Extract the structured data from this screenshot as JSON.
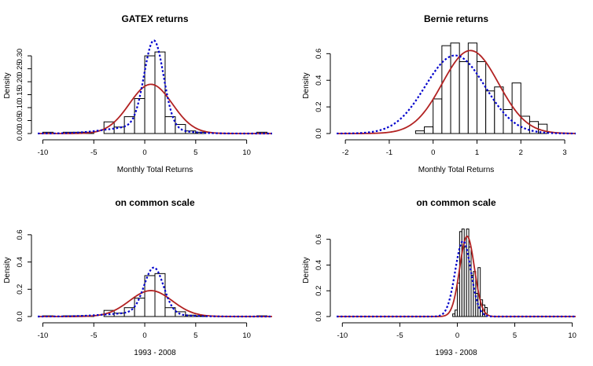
{
  "colors": {
    "normal_curve": "#b22222",
    "density_curve": "#0000cc",
    "bar_fill": "#ffffff",
    "bar_stroke": "#000000"
  },
  "chart_data": [
    {
      "type": "histogram",
      "title": "GATEX returns",
      "xlabel": "Monthly Total Returns",
      "ylabel": "Density",
      "xlim": [
        -10.5,
        12.5
      ],
      "ylim": [
        0,
        0.37
      ],
      "xticks": [
        -10,
        -5,
        0,
        5,
        10
      ],
      "xticklabels": [
        "-10",
        "-5",
        "0",
        "5",
        "10"
      ],
      "yticks": [
        0,
        0.05,
        0.1,
        0.15,
        0.2,
        0.25,
        0.3
      ],
      "yticklabels": [
        "0.00",
        "0.05",
        "0.10",
        "0.15",
        "0.20",
        "0.25",
        "0.30"
      ],
      "bins": [
        {
          "x0": -10,
          "x1": -9,
          "y": 0.005
        },
        {
          "x0": -8,
          "x1": -7,
          "y": 0.005
        },
        {
          "x0": -7,
          "x1": -6,
          "y": 0.005
        },
        {
          "x0": -6,
          "x1": -5,
          "y": 0.005
        },
        {
          "x0": -4,
          "x1": -3,
          "y": 0.045
        },
        {
          "x0": -3,
          "x1": -2,
          "y": 0.025
        },
        {
          "x0": -2,
          "x1": -1,
          "y": 0.065
        },
        {
          "x0": -1,
          "x1": 0,
          "y": 0.135
        },
        {
          "x0": 0,
          "x1": 1,
          "y": 0.3
        },
        {
          "x0": 1,
          "x1": 2,
          "y": 0.315
        },
        {
          "x0": 2,
          "x1": 3,
          "y": 0.065
        },
        {
          "x0": 3,
          "x1": 4,
          "y": 0.035
        },
        {
          "x0": 4,
          "x1": 5,
          "y": 0.01
        },
        {
          "x0": 5,
          "x1": 6,
          "y": 0.005
        },
        {
          "x0": 11,
          "x1": 12,
          "y": 0.005
        }
      ],
      "normal": {
        "mean": 0.6,
        "sd": 2.1
      },
      "kde": {
        "mixture": [
          {
            "w": 0.8,
            "m": 0.9,
            "s": 0.95
          },
          {
            "w": 0.2,
            "m": -0.6,
            "s": 3.0
          }
        ]
      }
    },
    {
      "type": "histogram",
      "title": "Bernie returns",
      "xlabel": "Monthly Total Returns",
      "ylabel": "Density",
      "xlim": [
        -2.2,
        3.25
      ],
      "ylim": [
        0,
        0.72
      ],
      "xticks": [
        -2,
        -1,
        0,
        1,
        2,
        3
      ],
      "xticklabels": [
        "-2",
        "-1",
        "0",
        "1",
        "2",
        "3"
      ],
      "yticks": [
        0,
        0.2,
        0.4,
        0.6
      ],
      "yticklabels": [
        "0.0",
        "0.2",
        "0.4",
        "0.6"
      ],
      "bins": [
        {
          "x0": -0.4,
          "x1": -0.2,
          "y": 0.02
        },
        {
          "x0": -0.2,
          "x1": 0.0,
          "y": 0.05
        },
        {
          "x0": 0.0,
          "x1": 0.2,
          "y": 0.26
        },
        {
          "x0": 0.2,
          "x1": 0.4,
          "y": 0.66
        },
        {
          "x0": 0.4,
          "x1": 0.6,
          "y": 0.68
        },
        {
          "x0": 0.6,
          "x1": 0.8,
          "y": 0.54
        },
        {
          "x0": 0.8,
          "x1": 1.0,
          "y": 0.68
        },
        {
          "x0": 1.0,
          "x1": 1.2,
          "y": 0.54
        },
        {
          "x0": 1.2,
          "x1": 1.4,
          "y": 0.32
        },
        {
          "x0": 1.4,
          "x1": 1.6,
          "y": 0.35
        },
        {
          "x0": 1.6,
          "x1": 1.8,
          "y": 0.18
        },
        {
          "x0": 1.8,
          "x1": 2.0,
          "y": 0.38
        },
        {
          "x0": 2.0,
          "x1": 2.2,
          "y": 0.13
        },
        {
          "x0": 2.2,
          "x1": 2.4,
          "y": 0.09
        },
        {
          "x0": 2.4,
          "x1": 2.6,
          "y": 0.07
        }
      ],
      "normal": {
        "mean": 0.85,
        "sd": 0.64
      },
      "kde": {
        "mixture": [
          {
            "w": 1.0,
            "m": 0.5,
            "s": 0.68
          }
        ]
      }
    },
    {
      "type": "histogram",
      "title": "on common scale",
      "xlabel": "1993 - 2008",
      "ylabel": "Density",
      "xlim": [
        -10.5,
        12.5
      ],
      "ylim": [
        0,
        0.68
      ],
      "xticks": [
        -10,
        -5,
        0,
        5,
        10
      ],
      "xticklabels": [
        "-10",
        "-5",
        "0",
        "5",
        "10"
      ],
      "yticks": [
        0,
        0.2,
        0.4,
        0.6
      ],
      "yticklabels": [
        "0.0",
        "0.2",
        "0.4",
        "0.6"
      ],
      "bins": [
        {
          "x0": -10,
          "x1": -9,
          "y": 0.005
        },
        {
          "x0": -8,
          "x1": -7,
          "y": 0.005
        },
        {
          "x0": -7,
          "x1": -6,
          "y": 0.005
        },
        {
          "x0": -6,
          "x1": -5,
          "y": 0.005
        },
        {
          "x0": -4,
          "x1": -3,
          "y": 0.045
        },
        {
          "x0": -3,
          "x1": -2,
          "y": 0.025
        },
        {
          "x0": -2,
          "x1": -1,
          "y": 0.065
        },
        {
          "x0": -1,
          "x1": 0,
          "y": 0.135
        },
        {
          "x0": 0,
          "x1": 1,
          "y": 0.3
        },
        {
          "x0": 1,
          "x1": 2,
          "y": 0.315
        },
        {
          "x0": 2,
          "x1": 3,
          "y": 0.065
        },
        {
          "x0": 3,
          "x1": 4,
          "y": 0.035
        },
        {
          "x0": 4,
          "x1": 5,
          "y": 0.01
        },
        {
          "x0": 5,
          "x1": 6,
          "y": 0.005
        },
        {
          "x0": 11,
          "x1": 12,
          "y": 0.005
        }
      ],
      "normal": {
        "mean": 0.6,
        "sd": 2.1
      },
      "kde": {
        "mixture": [
          {
            "w": 0.8,
            "m": 0.9,
            "s": 0.95
          },
          {
            "w": 0.2,
            "m": -0.6,
            "s": 3.0
          }
        ]
      }
    },
    {
      "type": "histogram",
      "title": "on common scale",
      "xlabel": "1993 - 2008",
      "ylabel": "Density",
      "xlim": [
        -10.5,
        10.3
      ],
      "ylim": [
        0,
        0.72
      ],
      "xticks": [
        -10,
        -5,
        0,
        5,
        10
      ],
      "xticklabels": [
        "-10",
        "-5",
        "0",
        "5",
        "10"
      ],
      "yticks": [
        0,
        0.2,
        0.4,
        0.6
      ],
      "yticklabels": [
        "0.0",
        "0.2",
        "0.4",
        "0.6"
      ],
      "bins": [
        {
          "x0": -0.4,
          "x1": -0.2,
          "y": 0.02
        },
        {
          "x0": -0.2,
          "x1": 0.0,
          "y": 0.05
        },
        {
          "x0": 0.0,
          "x1": 0.2,
          "y": 0.26
        },
        {
          "x0": 0.2,
          "x1": 0.4,
          "y": 0.66
        },
        {
          "x0": 0.4,
          "x1": 0.6,
          "y": 0.68
        },
        {
          "x0": 0.6,
          "x1": 0.8,
          "y": 0.54
        },
        {
          "x0": 0.8,
          "x1": 1.0,
          "y": 0.68
        },
        {
          "x0": 1.0,
          "x1": 1.2,
          "y": 0.54
        },
        {
          "x0": 1.2,
          "x1": 1.4,
          "y": 0.32
        },
        {
          "x0": 1.4,
          "x1": 1.6,
          "y": 0.35
        },
        {
          "x0": 1.6,
          "x1": 1.8,
          "y": 0.18
        },
        {
          "x0": 1.8,
          "x1": 2.0,
          "y": 0.38
        },
        {
          "x0": 2.0,
          "x1": 2.2,
          "y": 0.13
        },
        {
          "x0": 2.2,
          "x1": 2.4,
          "y": 0.09
        },
        {
          "x0": 2.4,
          "x1": 2.6,
          "y": 0.07
        }
      ],
      "normal": {
        "mean": 0.85,
        "sd": 0.64
      },
      "kde": {
        "mixture": [
          {
            "w": 1.0,
            "m": 0.5,
            "s": 0.68
          }
        ]
      }
    }
  ]
}
